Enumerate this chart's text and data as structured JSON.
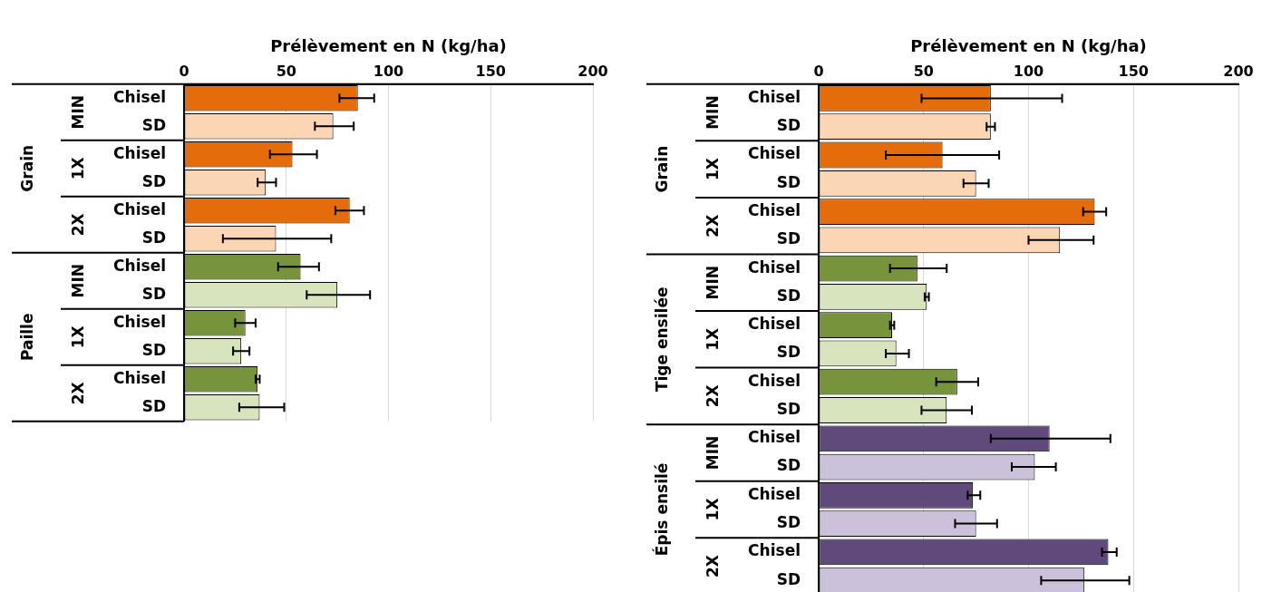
{
  "chart_data": [
    {
      "type": "bar",
      "orientation": "horizontal",
      "xlabel": "Prélèvement en N (kg/ha)",
      "xlim": [
        0,
        200
      ],
      "xticks": [
        0,
        50,
        100,
        150,
        200
      ],
      "grid": "x",
      "categories": [
        "Chisel",
        "SD",
        "Chisel",
        "SD",
        "Chisel",
        "SD",
        "Chisel",
        "SD",
        "Chisel",
        "SD",
        "Chisel",
        "SD"
      ],
      "values": [
        85,
        73,
        53,
        40,
        81,
        45,
        57,
        75,
        30,
        28,
        36,
        37
      ],
      "colors": [
        "#e46c0a",
        "#fcd5b5",
        "#e46c0a",
        "#fcd5b5",
        "#e46c0a",
        "#fcd5b5",
        "#77933c",
        "#d7e4bd",
        "#77933c",
        "#d7e4bd",
        "#77933c",
        "#d7e4bd"
      ],
      "errors": [
        [
          76,
          93
        ],
        [
          64,
          83
        ],
        [
          42,
          65
        ],
        [
          36,
          45
        ],
        [
          74,
          88
        ],
        [
          19,
          72
        ],
        [
          46,
          66
        ],
        [
          60,
          91
        ],
        [
          25,
          35
        ],
        [
          24,
          32
        ],
        [
          35,
          37
        ],
        [
          27,
          49
        ]
      ],
      "annotations": [
        "Grain",
        "MIN",
        "1X",
        "2X",
        "Paille",
        "MIN",
        "1X",
        "2X"
      ]
    },
    {
      "type": "bar",
      "orientation": "horizontal",
      "xlabel": "Prélèvement en N (kg/ha)",
      "xlim": [
        0,
        200
      ],
      "xticks": [
        0,
        50,
        100,
        150,
        200
      ],
      "grid": "x",
      "categories": [
        "Chisel",
        "SD",
        "Chisel",
        "SD",
        "Chisel",
        "SD",
        "Chisel",
        "SD",
        "Chisel",
        "SD",
        "Chisel",
        "SD",
        "Chisel",
        "SD",
        "Chisel",
        "SD",
        "Chisel",
        "SD"
      ],
      "values": [
        82,
        82,
        59,
        75,
        131.5,
        115,
        47,
        51.5,
        35,
        37,
        66,
        61,
        110,
        103,
        73.5,
        75,
        138,
        126.5
      ],
      "colors": [
        "#e46c0a",
        "#fcd5b5",
        "#e46c0a",
        "#fcd5b5",
        "#e46c0a",
        "#fcd5b5",
        "#77933c",
        "#d7e4bd",
        "#77933c",
        "#d7e4bd",
        "#77933c",
        "#d7e4bd",
        "#604a7b",
        "#ccc1da",
        "#604a7b",
        "#ccc1da",
        "#604a7b",
        "#ccc1da"
      ],
      "errors": [
        [
          49,
          116
        ],
        [
          80,
          84
        ],
        [
          32,
          86
        ],
        [
          69,
          81
        ],
        [
          126,
          137
        ],
        [
          100,
          131
        ],
        [
          34,
          61
        ],
        [
          50.5,
          52.5
        ],
        [
          34,
          36
        ],
        [
          32,
          43
        ],
        [
          56,
          76
        ],
        [
          49,
          73
        ],
        [
          82,
          139
        ],
        [
          92,
          113
        ],
        [
          71,
          77
        ],
        [
          65,
          85
        ],
        [
          135,
          142
        ],
        [
          106,
          148
        ]
      ],
      "annotations": [
        "Grain",
        "MIN",
        "1X",
        "2X",
        "Tige ensilée",
        "MIN",
        "1X",
        "2X",
        "Épis ensilé",
        "MIN",
        "1X",
        "2X"
      ]
    }
  ]
}
